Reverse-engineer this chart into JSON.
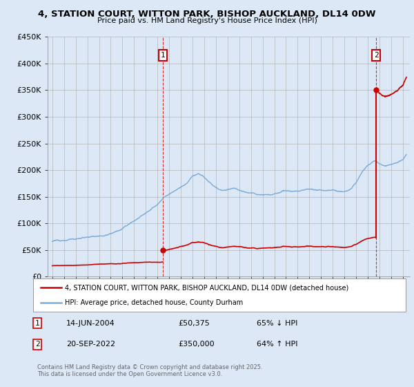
{
  "title": "4, STATION COURT, WITTON PARK, BISHOP AUCKLAND, DL14 0DW",
  "subtitle": "Price paid vs. HM Land Registry's House Price Index (HPI)",
  "ylim": [
    0,
    450000
  ],
  "yticks": [
    0,
    50000,
    100000,
    150000,
    200000,
    250000,
    300000,
    350000,
    400000,
    450000
  ],
  "ytick_labels": [
    "£0",
    "£50K",
    "£100K",
    "£150K",
    "£200K",
    "£250K",
    "£300K",
    "£350K",
    "£400K",
    "£450K"
  ],
  "hpi_color": "#7aabdb",
  "property_color": "#cc0000",
  "sale1_x": 2004.45,
  "sale1_price": 50375,
  "sale2_x": 2022.72,
  "sale2_price": 350000,
  "legend_property": "4, STATION COURT, WITTON PARK, BISHOP AUCKLAND, DL14 0DW (detached house)",
  "legend_hpi": "HPI: Average price, detached house, County Durham",
  "annotation1_date": "14-JUN-2004",
  "annotation1_price": "£50,375",
  "annotation1_hpi": "65% ↓ HPI",
  "annotation2_date": "20-SEP-2022",
  "annotation2_price": "£350,000",
  "annotation2_hpi": "64% ↑ HPI",
  "footer": "Contains HM Land Registry data © Crown copyright and database right 2025.\nThis data is licensed under the Open Government Licence v3.0.",
  "background_color": "#dce8f5",
  "plot_background": "#dce8f5",
  "legend_background": "#ffffff"
}
